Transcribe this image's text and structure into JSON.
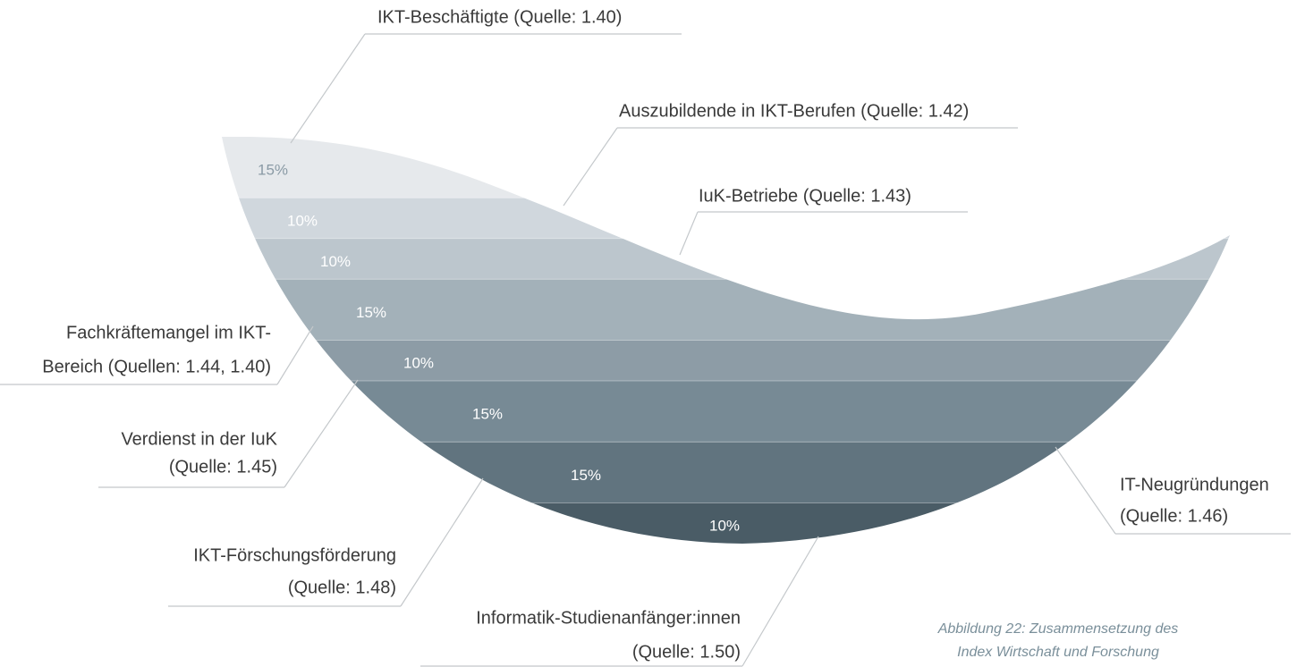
{
  "chart_data": {
    "type": "stacked-bowl",
    "categories": [
      [
        "IKT-Beschäftigte (Quelle: 1.40)"
      ],
      [
        "Auszubildende in IKT-Berufen (Quelle: 1.42)"
      ],
      [
        "IuK-Betriebe (Quelle: 1.43)"
      ],
      [
        "Fachkräftemangel im IKT-",
        "Bereich (Quellen: 1.44, 1.40)"
      ],
      [
        "Verdienst in der IuK",
        "(Quelle: 1.45)"
      ],
      [
        "IT-Neugründungen",
        "(Quelle: 1.46)"
      ],
      [
        "IKT-Förschungsförderung",
        "(Quelle: 1.48)"
      ],
      [
        "Informatik-Studienanfänger:innen",
        "(Quelle: 1.50)"
      ]
    ],
    "values": [
      15,
      10,
      10,
      15,
      10,
      15,
      15,
      10
    ],
    "value_labels": [
      "15%",
      "10%",
      "10%",
      "15%",
      "10%",
      "15%",
      "15%",
      "10%"
    ],
    "colors": [
      "#e6e9ec",
      "#d0d7dd",
      "#bcc6cd",
      "#a3b1b9",
      "#8d9ca6",
      "#778a95",
      "#61747f",
      "#4a5c66"
    ],
    "caption": [
      "Abbildung 22: Zusammensetzung des",
      "Index Wirtschaft und Forschung"
    ]
  }
}
